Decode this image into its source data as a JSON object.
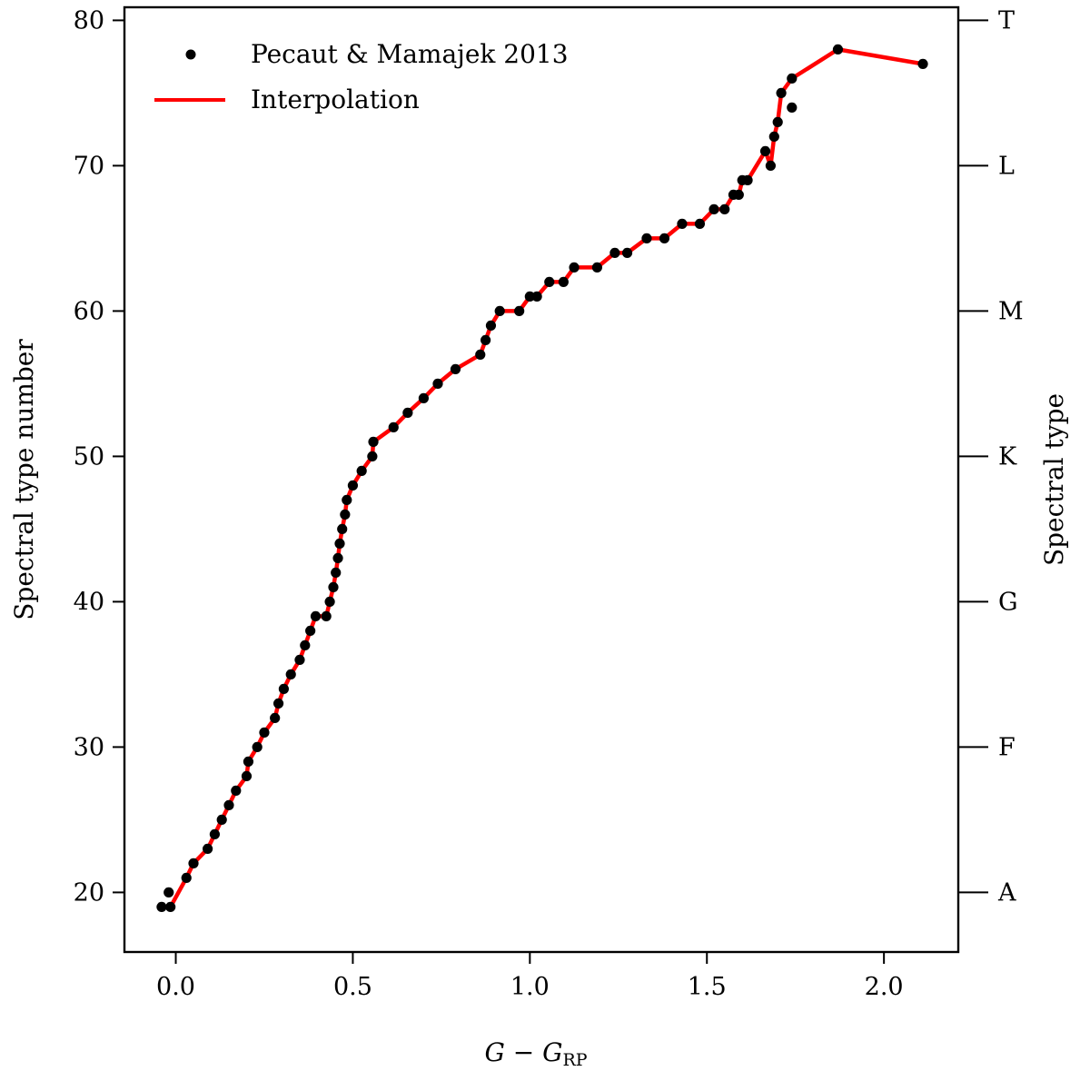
{
  "chart_data": {
    "type": "line",
    "title": "",
    "xlabel": {
      "main": "G − G",
      "sub": "RP"
    },
    "ylabel": "Spectral type number",
    "ylabel_right": "Spectral type",
    "xlim": [
      -0.145,
      2.21
    ],
    "ylim": [
      15.9,
      80.9
    ],
    "x_ticks": [
      0.0,
      0.5,
      1.0,
      1.5,
      2.0
    ],
    "x_tick_labels": [
      "0.0",
      "0.5",
      "1.0",
      "1.5",
      "2.0"
    ],
    "y_ticks": [
      20,
      30,
      40,
      50,
      60,
      70,
      80
    ],
    "y_tick_labels": [
      "20",
      "30",
      "40",
      "50",
      "60",
      "70",
      "80"
    ],
    "right_ticks": [
      20,
      30,
      40,
      50,
      60,
      70,
      80
    ],
    "right_tick_labels": [
      "A",
      "F",
      "G",
      "K",
      "M",
      "L",
      "T"
    ],
    "legend_position": "top-left",
    "series": [
      {
        "name": "Pecaut & Mamajek 2013",
        "kind": "scatter",
        "color": "#000000",
        "points": [
          [
            -0.04,
            19
          ],
          [
            -0.02,
            20
          ],
          [
            -0.015,
            19
          ],
          [
            0.03,
            21
          ],
          [
            0.05,
            22
          ],
          [
            0.09,
            23
          ],
          [
            0.11,
            24
          ],
          [
            0.13,
            25
          ],
          [
            0.15,
            26
          ],
          [
            0.17,
            27
          ],
          [
            0.2,
            28
          ],
          [
            0.205,
            29
          ],
          [
            0.23,
            30
          ],
          [
            0.25,
            31
          ],
          [
            0.28,
            32
          ],
          [
            0.29,
            33
          ],
          [
            0.305,
            34
          ],
          [
            0.325,
            35
          ],
          [
            0.35,
            36
          ],
          [
            0.365,
            37
          ],
          [
            0.38,
            38
          ],
          [
            0.395,
            39
          ],
          [
            0.425,
            39
          ],
          [
            0.435,
            40
          ],
          [
            0.445,
            41
          ],
          [
            0.452,
            42
          ],
          [
            0.458,
            43
          ],
          [
            0.463,
            44
          ],
          [
            0.47,
            45
          ],
          [
            0.478,
            46
          ],
          [
            0.483,
            47
          ],
          [
            0.5,
            48
          ],
          [
            0.525,
            49
          ],
          [
            0.555,
            50
          ],
          [
            0.558,
            51
          ],
          [
            0.615,
            52
          ],
          [
            0.655,
            53
          ],
          [
            0.7,
            54
          ],
          [
            0.74,
            55
          ],
          [
            0.79,
            56
          ],
          [
            0.86,
            57
          ],
          [
            0.875,
            58
          ],
          [
            0.89,
            59
          ],
          [
            0.915,
            60
          ],
          [
            0.97,
            60
          ],
          [
            1.0,
            61
          ],
          [
            1.02,
            61
          ],
          [
            1.055,
            62
          ],
          [
            1.095,
            62
          ],
          [
            1.125,
            63
          ],
          [
            1.19,
            63
          ],
          [
            1.24,
            64
          ],
          [
            1.275,
            64
          ],
          [
            1.33,
            65
          ],
          [
            1.38,
            65
          ],
          [
            1.43,
            66
          ],
          [
            1.48,
            66
          ],
          [
            1.52,
            67
          ],
          [
            1.55,
            67
          ],
          [
            1.575,
            68
          ],
          [
            1.59,
            68
          ],
          [
            1.6,
            69
          ],
          [
            1.615,
            69
          ],
          [
            1.665,
            71
          ],
          [
            1.68,
            70
          ],
          [
            1.69,
            72
          ],
          [
            1.7,
            73
          ],
          [
            1.71,
            75
          ],
          [
            1.74,
            76
          ],
          [
            1.74,
            74
          ],
          [
            1.87,
            78
          ],
          [
            2.11,
            77
          ]
        ]
      },
      {
        "name": "Interpolation",
        "kind": "line",
        "color": "#ff0000",
        "points": [
          [
            -0.015,
            19
          ],
          [
            0.03,
            21
          ],
          [
            0.05,
            22
          ],
          [
            0.09,
            23
          ],
          [
            0.11,
            24
          ],
          [
            0.13,
            25
          ],
          [
            0.15,
            26
          ],
          [
            0.17,
            27
          ],
          [
            0.2,
            28
          ],
          [
            0.205,
            29
          ],
          [
            0.23,
            30
          ],
          [
            0.25,
            31
          ],
          [
            0.28,
            32
          ],
          [
            0.29,
            33
          ],
          [
            0.305,
            34
          ],
          [
            0.325,
            35
          ],
          [
            0.35,
            36
          ],
          [
            0.365,
            37
          ],
          [
            0.38,
            38
          ],
          [
            0.395,
            39
          ],
          [
            0.425,
            39
          ],
          [
            0.435,
            40
          ],
          [
            0.445,
            41
          ],
          [
            0.452,
            42
          ],
          [
            0.458,
            43
          ],
          [
            0.463,
            44
          ],
          [
            0.47,
            45
          ],
          [
            0.478,
            46
          ],
          [
            0.483,
            47
          ],
          [
            0.5,
            48
          ],
          [
            0.525,
            49
          ],
          [
            0.555,
            50
          ],
          [
            0.558,
            51
          ],
          [
            0.615,
            52
          ],
          [
            0.655,
            53
          ],
          [
            0.7,
            54
          ],
          [
            0.74,
            55
          ],
          [
            0.79,
            56
          ],
          [
            0.86,
            57
          ],
          [
            0.875,
            58
          ],
          [
            0.89,
            59
          ],
          [
            0.915,
            60
          ],
          [
            0.97,
            60
          ],
          [
            1.0,
            61
          ],
          [
            1.02,
            61
          ],
          [
            1.055,
            62
          ],
          [
            1.095,
            62
          ],
          [
            1.125,
            63
          ],
          [
            1.19,
            63
          ],
          [
            1.24,
            64
          ],
          [
            1.275,
            64
          ],
          [
            1.33,
            65
          ],
          [
            1.38,
            65
          ],
          [
            1.43,
            66
          ],
          [
            1.48,
            66
          ],
          [
            1.52,
            67
          ],
          [
            1.55,
            67
          ],
          [
            1.575,
            68
          ],
          [
            1.59,
            68
          ],
          [
            1.6,
            69
          ],
          [
            1.615,
            69
          ],
          [
            1.665,
            71
          ],
          [
            1.68,
            70
          ],
          [
            1.69,
            72
          ],
          [
            1.7,
            73
          ],
          [
            1.71,
            75
          ],
          [
            1.74,
            76
          ],
          [
            1.87,
            78
          ],
          [
            2.11,
            77
          ]
        ]
      }
    ]
  }
}
